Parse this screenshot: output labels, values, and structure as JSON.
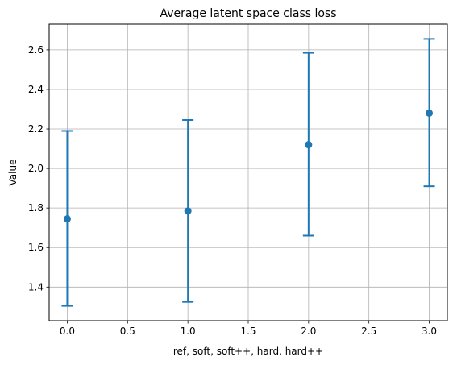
{
  "chart_data": {
    "type": "scatter",
    "title": "Average latent space class loss",
    "xlabel": "ref, soft, soft++, hard, hard++",
    "ylabel": "Value",
    "xlim": [
      -0.15,
      3.15
    ],
    "ylim": [
      1.23,
      2.73
    ],
    "xticks": [
      0.0,
      0.5,
      1.0,
      1.5,
      2.0,
      2.5,
      3.0
    ],
    "xtick_labels": [
      "0.0",
      "0.5",
      "1.0",
      "1.5",
      "2.0",
      "2.5",
      "3.0"
    ],
    "yticks": [
      1.4,
      1.6,
      1.8,
      2.0,
      2.2,
      2.4,
      2.6
    ],
    "ytick_labels": [
      "1.4",
      "1.6",
      "1.8",
      "2.0",
      "2.2",
      "2.4",
      "2.6"
    ],
    "grid": true,
    "series": [
      {
        "color": "#1f77b4",
        "x": [
          0,
          1,
          2,
          3
        ],
        "y": [
          1.745,
          1.785,
          2.12,
          2.28
        ],
        "yerr_lower": [
          1.305,
          1.325,
          1.66,
          1.91
        ],
        "yerr_upper": [
          2.19,
          2.245,
          2.585,
          2.655
        ]
      }
    ]
  }
}
